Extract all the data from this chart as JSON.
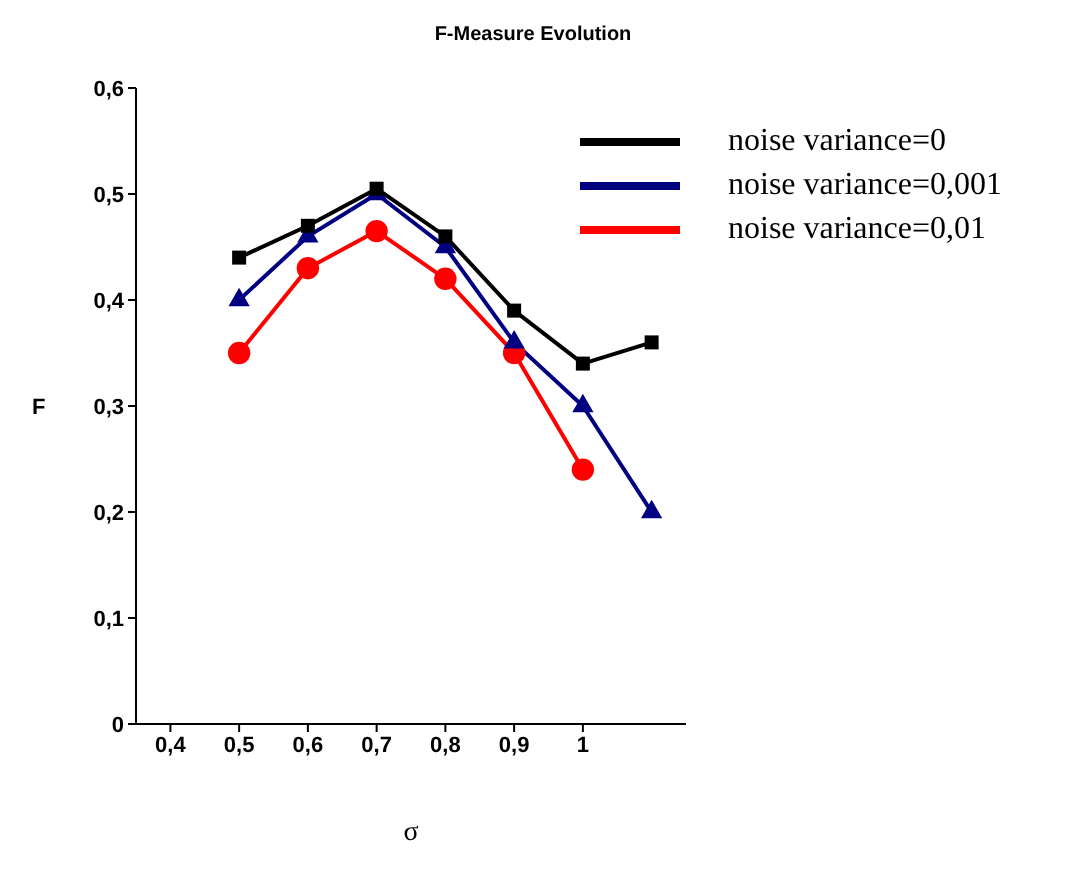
{
  "chart_data": {
    "type": "line",
    "title": "F-Measure Evolution",
    "xlabel": "σ",
    "ylabel": "F",
    "x": [
      0.5,
      0.6,
      0.7,
      0.8,
      0.9,
      1.0,
      1.1
    ],
    "xlim": [
      0.35,
      1.15
    ],
    "xticks": [
      {
        "value": 0.4,
        "label": "0,4"
      },
      {
        "value": 0.5,
        "label": "0,5"
      },
      {
        "value": 0.6,
        "label": "0,6"
      },
      {
        "value": 0.7,
        "label": "0,7"
      },
      {
        "value": 0.8,
        "label": "0,8"
      },
      {
        "value": 0.9,
        "label": "0,9"
      },
      1
    ],
    "ylim": [
      0,
      0.6
    ],
    "yticks": [
      0,
      {
        "value": 0.1,
        "label": "0,1"
      },
      {
        "value": 0.2,
        "label": "0,2"
      },
      {
        "value": 0.3,
        "label": "0,3"
      },
      {
        "value": 0.4,
        "label": "0,4"
      },
      {
        "value": 0.5,
        "label": "0,5"
      },
      {
        "value": 0.6,
        "label": "0,6"
      }
    ],
    "grid": false,
    "legend": "top right",
    "line_style": "solid",
    "series": [
      {
        "name": "noise variance=0",
        "color": "#000000",
        "marker": "square",
        "values": [
          0.44,
          0.47,
          0.505,
          0.46,
          0.39,
          0.34,
          0.36
        ]
      },
      {
        "name": "noise variance=0,001",
        "color": "#000080",
        "marker": "triangle",
        "values": [
          0.4,
          0.46,
          0.5,
          0.45,
          0.36,
          0.3,
          0.2
        ]
      },
      {
        "name": "noise variance=0,01",
        "color": "#ff0000",
        "marker": "circle",
        "values": [
          0.35,
          0.43,
          0.465,
          0.42,
          0.35,
          0.24,
          null
        ]
      }
    ]
  }
}
